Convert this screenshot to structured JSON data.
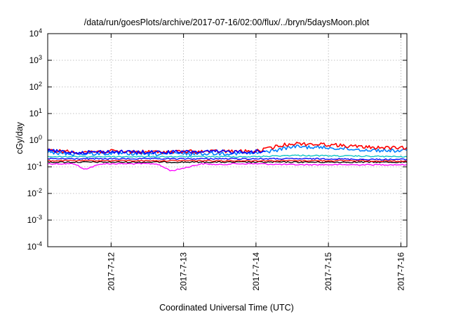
{
  "chart_data": {
    "type": "line",
    "title": "/data/run/goesPlots/archive/2017-07-16/02:00/flux/../bryn/5daysMoon.plot",
    "xlabel": "Coordinated Universal Time (UTC)",
    "ylabel": "cGy/day",
    "yscale": "log",
    "ylim": [
      0.0001,
      10000
    ],
    "xlim": [
      "2017-07-11 03:00",
      "2017-07-16 02:00"
    ],
    "y_ticks": [
      {
        "base": "10",
        "exp": "-4",
        "value": 0.0001
      },
      {
        "base": "10",
        "exp": "-3",
        "value": 0.001
      },
      {
        "base": "10",
        "exp": "-2",
        "value": 0.01
      },
      {
        "base": "10",
        "exp": "-1",
        "value": 0.1
      },
      {
        "base": "10",
        "exp": "0",
        "value": 1
      },
      {
        "base": "10",
        "exp": "1",
        "value": 10
      },
      {
        "base": "10",
        "exp": "2",
        "value": 100
      },
      {
        "base": "10",
        "exp": "3",
        "value": 1000
      },
      {
        "base": "10",
        "exp": "4",
        "value": 10000
      }
    ],
    "x_ticks": [
      {
        "label": "2017-7-12",
        "value": "2017-07-12 00:00"
      },
      {
        "label": "2017-7-13",
        "value": "2017-07-13 00:00"
      },
      {
        "label": "2017-7-14",
        "value": "2017-07-14 00:00"
      },
      {
        "label": "2017-7-15",
        "value": "2017-07-15 00:00"
      },
      {
        "label": "2017-7-16",
        "value": "2017-07-16 00:00"
      }
    ],
    "grid": true,
    "legend": "none",
    "series": [
      {
        "color": "#ff00ff",
        "x": [
          "2017-07-11 03:00",
          "2017-07-11 12:00",
          "2017-07-11 15:00",
          "2017-07-11 21:00",
          "2017-07-12 06:00",
          "2017-07-12 15:00",
          "2017-07-12 20:00",
          "2017-07-13 06:00",
          "2017-07-13 12:00",
          "2017-07-13 16:00",
          "2017-07-14 00:00",
          "2017-07-14 12:00",
          "2017-07-15 00:00",
          "2017-07-15 12:00",
          "2017-07-16 00:00",
          "2017-07-16 02:00"
        ],
        "values": [
          0.13,
          0.13,
          0.08,
          0.13,
          0.13,
          0.13,
          0.07,
          0.13,
          0.12,
          0.13,
          0.13,
          0.12,
          0.12,
          0.12,
          0.12,
          0.12
        ]
      },
      {
        "color": "#000000",
        "x": [
          "2017-07-11 03:00",
          "2017-07-11 12:00",
          "2017-07-12 00:00",
          "2017-07-12 12:00",
          "2017-07-13 00:00",
          "2017-07-13 12:00",
          "2017-07-14 00:00",
          "2017-07-14 12:00",
          "2017-07-15 00:00",
          "2017-07-15 12:00",
          "2017-07-16 00:00",
          "2017-07-16 02:00"
        ],
        "values": [
          0.15,
          0.15,
          0.15,
          0.15,
          0.15,
          0.15,
          0.15,
          0.15,
          0.15,
          0.15,
          0.15,
          0.15
        ]
      },
      {
        "color": "#ff0000",
        "x": [
          "2017-07-11 03:00",
          "2017-07-11 12:00",
          "2017-07-12 00:00",
          "2017-07-12 12:00",
          "2017-07-13 00:00",
          "2017-07-13 12:00",
          "2017-07-14 00:00",
          "2017-07-14 12:00",
          "2017-07-15 00:00",
          "2017-07-15 12:00",
          "2017-07-16 00:00",
          "2017-07-16 02:00"
        ],
        "values": [
          0.17,
          0.17,
          0.17,
          0.17,
          0.17,
          0.17,
          0.17,
          0.17,
          0.17,
          0.17,
          0.16,
          0.16
        ]
      },
      {
        "color": "#0000ff",
        "x": [
          "2017-07-11 03:00",
          "2017-07-11 12:00",
          "2017-07-12 00:00",
          "2017-07-12 12:00",
          "2017-07-13 00:00",
          "2017-07-13 12:00",
          "2017-07-14 00:00",
          "2017-07-14 12:00",
          "2017-07-15 00:00",
          "2017-07-15 12:00",
          "2017-07-16 00:00",
          "2017-07-16 02:00"
        ],
        "values": [
          0.2,
          0.2,
          0.2,
          0.2,
          0.2,
          0.2,
          0.2,
          0.2,
          0.2,
          0.19,
          0.19,
          0.19
        ]
      },
      {
        "color": "#00c0c0",
        "x": [
          "2017-07-11 03:00",
          "2017-07-11 12:00",
          "2017-07-12 00:00",
          "2017-07-12 12:00",
          "2017-07-13 00:00",
          "2017-07-13 12:00",
          "2017-07-14 00:00",
          "2017-07-14 12:00",
          "2017-07-15 00:00",
          "2017-07-15 12:00",
          "2017-07-16 00:00",
          "2017-07-16 02:00"
        ],
        "values": [
          0.24,
          0.24,
          0.24,
          0.24,
          0.24,
          0.24,
          0.24,
          0.27,
          0.26,
          0.25,
          0.24,
          0.24
        ]
      },
      {
        "color": "#0080ff",
        "x": [
          "2017-07-11 03:00",
          "2017-07-11 12:00",
          "2017-07-12 00:00",
          "2017-07-12 12:00",
          "2017-07-13 00:00",
          "2017-07-13 12:00",
          "2017-07-14 00:00",
          "2017-07-14 08:00",
          "2017-07-14 12:00",
          "2017-07-15 00:00",
          "2017-07-15 12:00",
          "2017-07-16 00:00",
          "2017-07-16 02:00"
        ],
        "values": [
          0.35,
          0.3,
          0.32,
          0.3,
          0.31,
          0.32,
          0.32,
          0.45,
          0.58,
          0.52,
          0.43,
          0.4,
          0.42
        ]
      },
      {
        "color": "#ff0000",
        "x": [
          "2017-07-11 03:00",
          "2017-07-11 12:00",
          "2017-07-12 00:00",
          "2017-07-12 12:00",
          "2017-07-13 00:00",
          "2017-07-13 12:00",
          "2017-07-14 00:00",
          "2017-07-14 08:00",
          "2017-07-14 12:00",
          "2017-07-15 00:00",
          "2017-07-15 12:00",
          "2017-07-16 00:00",
          "2017-07-16 02:00"
        ],
        "values": [
          0.42,
          0.36,
          0.38,
          0.36,
          0.37,
          0.38,
          0.38,
          0.62,
          0.75,
          0.68,
          0.55,
          0.5,
          0.53
        ]
      },
      {
        "color": "#0000ff",
        "x": [
          "2017-07-11 03:00",
          "2017-07-11 12:00",
          "2017-07-12 00:00",
          "2017-07-12 12:00",
          "2017-07-13 00:00",
          "2017-07-13 12:00",
          "2017-07-14 00:00",
          "2017-07-14 03:00"
        ],
        "values": [
          0.4,
          0.35,
          0.37,
          0.35,
          0.36,
          0.37,
          0.37,
          0.38
        ]
      }
    ]
  }
}
